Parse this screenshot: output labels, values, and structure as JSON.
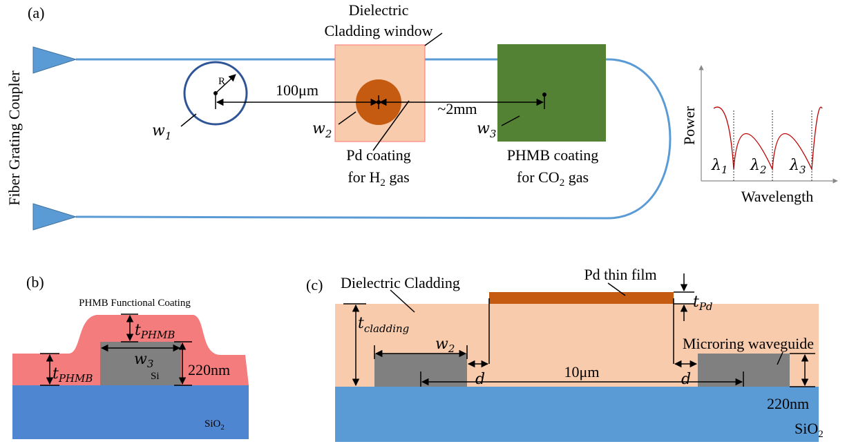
{
  "panel_a": {
    "label": "(a)",
    "window_label": [
      "Dielectric",
      "Cladding window"
    ],
    "coupler": "Fiber Grating Coupler",
    "radius": "R",
    "dist1": "100μm",
    "dist2": "~2mm",
    "w1": {
      "base": "w",
      "sub": "1"
    },
    "w2": {
      "base": "w",
      "sub": "2"
    },
    "w3": {
      "base": "w",
      "sub": "3"
    },
    "pd_coating": {
      "line1": "Pd coating",
      "pre": "for H",
      "sub": "2",
      "post": " gas"
    },
    "phmb_coating": {
      "line1": "PHMB coating",
      "pre": "for CO",
      "sub": "2",
      "post": " gas"
    },
    "spectrum": {
      "y_label": "Power",
      "x_label": "Wavelength",
      "lambdas": [
        {
          "base": "λ",
          "sub": "1"
        },
        {
          "base": "λ",
          "sub": "2"
        },
        {
          "base": "λ",
          "sub": "3"
        }
      ]
    }
  },
  "panel_b": {
    "label": "(b)",
    "coating": "PHMB Functional Coating",
    "t_top": {
      "base": "t",
      "sub": "PHMB"
    },
    "t_side": {
      "base": "t",
      "sub": "PHMB"
    },
    "width": {
      "base": "w",
      "sub": "3"
    },
    "height": "220nm",
    "core": "Si",
    "substrate": {
      "base": "SiO",
      "sub": "2"
    }
  },
  "panel_c": {
    "label": "(c)",
    "cladding": "Dielectric Cladding",
    "film": "Pd thin film",
    "t_pd": {
      "base": "t",
      "sub": "Pd"
    },
    "t_cladding": {
      "base": "t",
      "sub": "cladding"
    },
    "width": {
      "base": "w",
      "sub": "2"
    },
    "waveguide": "Microring waveguide",
    "gap1": "d",
    "gap2": "d",
    "spacing": "10μm",
    "height": "220nm",
    "substrate": {
      "base": "SiO",
      "sub": "2"
    }
  }
}
